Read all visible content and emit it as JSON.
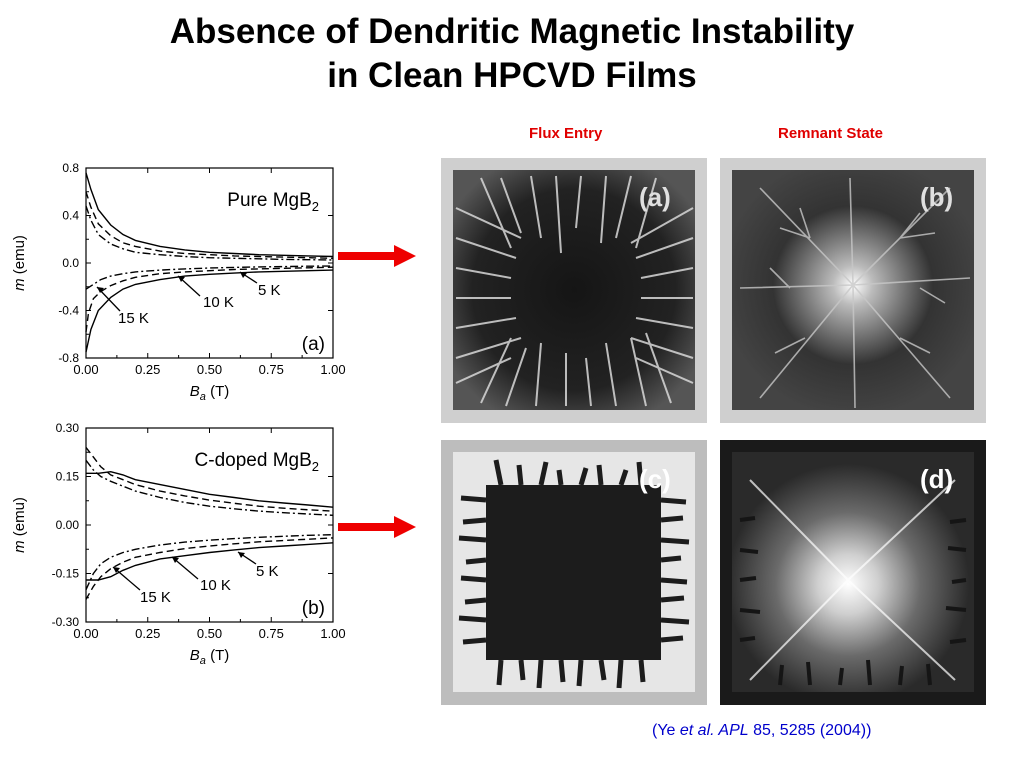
{
  "slide": {
    "title_line1": "Absence of Dendritic Magnetic Instability",
    "title_line2": "in Clean HPCVD Films",
    "column_labels": [
      "Flux Entry",
      "Remnant State"
    ],
    "citation": {
      "open": "(Ye ",
      "italic": "et al. APL",
      "rest": " 85, 5285 (2004))"
    }
  },
  "colors": {
    "label_red": "#e00000",
    "arrow_red": "#ee0000",
    "citation_blue": "#0000cc"
  },
  "image_panels": [
    {
      "label": "(a)",
      "description_icon": "dendrite-image-icon"
    },
    {
      "label": "(b)",
      "description_icon": "dendrite-image-icon"
    },
    {
      "label": "(c)",
      "description_icon": "flux-front-image-icon"
    },
    {
      "label": "(d)",
      "description_icon": "remnant-flux-image-icon"
    }
  ],
  "chart_data": [
    {
      "type": "line",
      "panel_label": "(a)",
      "title": "Pure MgB",
      "title_sub": "2",
      "xlabel_main": "B",
      "xlabel_sub": "a",
      "xlabel_unit": " (T)",
      "ylabel_italic": "m",
      "ylabel_rest": " (emu)",
      "xlim": [
        0,
        1.0
      ],
      "ylim": [
        -0.8,
        0.8
      ],
      "xticks": [
        "0.00",
        "0.25",
        "0.50",
        "0.75",
        "1.00"
      ],
      "yticks": [
        "-0.8",
        "-0.4",
        "0.0",
        "0.4",
        "0.8"
      ],
      "annotations": [
        "15 K",
        "10 K",
        "5 K"
      ],
      "series": [
        {
          "name": "15 K",
          "style": "solid",
          "upper": [
            [
              0,
              0.76
            ],
            [
              0.02,
              0.62
            ],
            [
              0.05,
              0.45
            ],
            [
              0.1,
              0.32
            ],
            [
              0.15,
              0.24
            ],
            [
              0.2,
              0.19
            ],
            [
              0.3,
              0.14
            ],
            [
              0.4,
              0.11
            ],
            [
              0.5,
              0.09
            ],
            [
              0.6,
              0.08
            ],
            [
              0.7,
              0.07
            ],
            [
              0.8,
              0.065
            ],
            [
              0.9,
              0.06
            ],
            [
              1.0,
              0.055
            ]
          ],
          "lower": [
            [
              0,
              -0.75
            ],
            [
              0.02,
              -0.56
            ],
            [
              0.05,
              -0.4
            ],
            [
              0.1,
              -0.29
            ],
            [
              0.15,
              -0.22
            ],
            [
              0.2,
              -0.18
            ],
            [
              0.3,
              -0.14
            ],
            [
              0.4,
              -0.11
            ],
            [
              0.5,
              -0.095
            ],
            [
              0.6,
              -0.085
            ],
            [
              0.7,
              -0.075
            ],
            [
              0.8,
              -0.07
            ],
            [
              0.9,
              -0.065
            ],
            [
              1.0,
              -0.06
            ]
          ]
        },
        {
          "name": "10 K",
          "style": "dash",
          "upper": [
            [
              0,
              0.6
            ],
            [
              0.02,
              0.47
            ],
            [
              0.05,
              0.33
            ],
            [
              0.1,
              0.23
            ],
            [
              0.15,
              0.17
            ],
            [
              0.2,
              0.14
            ],
            [
              0.3,
              0.1
            ],
            [
              0.4,
              0.08
            ],
            [
              0.5,
              0.07
            ],
            [
              0.6,
              0.06
            ],
            [
              0.7,
              0.055
            ],
            [
              0.8,
              0.05
            ],
            [
              0.9,
              0.045
            ],
            [
              1.0,
              0.04
            ]
          ],
          "lower": [
            [
              0,
              -0.58
            ],
            [
              0.01,
              -0.42
            ],
            [
              0.03,
              -0.3
            ],
            [
              0.06,
              -0.24
            ],
            [
              0.1,
              -0.19
            ],
            [
              0.15,
              -0.15
            ],
            [
              0.2,
              -0.12
            ],
            [
              0.3,
              -0.09
            ],
            [
              0.4,
              -0.075
            ],
            [
              0.5,
              -0.065
            ],
            [
              0.6,
              -0.055
            ],
            [
              0.7,
              -0.05
            ],
            [
              0.8,
              -0.045
            ],
            [
              0.9,
              -0.04
            ],
            [
              1.0,
              -0.035
            ]
          ]
        },
        {
          "name": "5 K",
          "style": "dashdot",
          "upper": [
            [
              0,
              0.48
            ],
            [
              0.02,
              0.36
            ],
            [
              0.05,
              0.24
            ],
            [
              0.1,
              0.16
            ],
            [
              0.15,
              0.12
            ],
            [
              0.2,
              0.09
            ],
            [
              0.3,
              0.07
            ],
            [
              0.4,
              0.055
            ],
            [
              0.5,
              0.045
            ],
            [
              0.6,
              0.04
            ],
            [
              0.7,
              0.035
            ],
            [
              0.8,
              0.03
            ],
            [
              0.9,
              0.028
            ],
            [
              1.0,
              0.025
            ]
          ],
          "lower": [
            [
              0,
              -0.22
            ],
            [
              0.03,
              -0.18
            ],
            [
              0.06,
              -0.14
            ],
            [
              0.1,
              -0.11
            ],
            [
              0.15,
              -0.09
            ],
            [
              0.2,
              -0.075
            ],
            [
              0.3,
              -0.06
            ],
            [
              0.4,
              -0.05
            ],
            [
              0.5,
              -0.042
            ],
            [
              0.6,
              -0.037
            ],
            [
              0.7,
              -0.033
            ],
            [
              0.8,
              -0.03
            ],
            [
              0.9,
              -0.027
            ],
            [
              1.0,
              -0.025
            ]
          ]
        }
      ]
    },
    {
      "type": "line",
      "panel_label": "(b)",
      "title": "C-doped MgB",
      "title_sub": "2",
      "xlabel_main": "B",
      "xlabel_sub": "a",
      "xlabel_unit": " (T)",
      "ylabel_italic": "m",
      "ylabel_rest": " (emu)",
      "xlim": [
        0,
        1.0
      ],
      "ylim": [
        -0.3,
        0.3
      ],
      "xticks": [
        "0.00",
        "0.25",
        "0.50",
        "0.75",
        "1.00"
      ],
      "yticks": [
        "-0.30",
        "-0.15",
        "0.00",
        "0.15",
        "0.30"
      ],
      "annotations": [
        "15 K",
        "10 K",
        "5 K"
      ],
      "series": [
        {
          "name": "15 K",
          "style": "solid",
          "upper": [
            [
              0,
              0.16
            ],
            [
              0.05,
              0.16
            ],
            [
              0.1,
              0.165
            ],
            [
              0.15,
              0.155
            ],
            [
              0.2,
              0.14
            ],
            [
              0.3,
              0.125
            ],
            [
              0.4,
              0.11
            ],
            [
              0.5,
              0.095
            ],
            [
              0.6,
              0.085
            ],
            [
              0.7,
              0.075
            ],
            [
              0.8,
              0.068
            ],
            [
              0.9,
              0.062
            ],
            [
              1.0,
              0.055
            ]
          ],
          "lower": [
            [
              0,
              -0.17
            ],
            [
              0.05,
              -0.17
            ],
            [
              0.1,
              -0.16
            ],
            [
              0.15,
              -0.14
            ],
            [
              0.2,
              -0.125
            ],
            [
              0.3,
              -0.105
            ],
            [
              0.4,
              -0.095
            ],
            [
              0.5,
              -0.085
            ],
            [
              0.6,
              -0.077
            ],
            [
              0.7,
              -0.07
            ],
            [
              0.8,
              -0.065
            ],
            [
              0.9,
              -0.06
            ],
            [
              1.0,
              -0.055
            ]
          ]
        },
        {
          "name": "10 K",
          "style": "dash",
          "upper": [
            [
              0,
              0.24
            ],
            [
              0.03,
              0.21
            ],
            [
              0.06,
              0.18
            ],
            [
              0.1,
              0.155
            ],
            [
              0.15,
              0.14
            ],
            [
              0.2,
              0.125
            ],
            [
              0.3,
              0.105
            ],
            [
              0.4,
              0.09
            ],
            [
              0.5,
              0.077
            ],
            [
              0.6,
              0.067
            ],
            [
              0.7,
              0.058
            ],
            [
              0.8,
              0.052
            ],
            [
              0.9,
              0.047
            ],
            [
              1.0,
              0.043
            ]
          ],
          "lower": [
            [
              0,
              -0.23
            ],
            [
              0.03,
              -0.19
            ],
            [
              0.06,
              -0.16
            ],
            [
              0.1,
              -0.135
            ],
            [
              0.15,
              -0.115
            ],
            [
              0.2,
              -0.1
            ],
            [
              0.3,
              -0.085
            ],
            [
              0.4,
              -0.073
            ],
            [
              0.5,
              -0.065
            ],
            [
              0.6,
              -0.058
            ],
            [
              0.7,
              -0.052
            ],
            [
              0.8,
              -0.048
            ],
            [
              0.9,
              -0.044
            ],
            [
              1.0,
              -0.04
            ]
          ]
        },
        {
          "name": "5 K",
          "style": "dashdot",
          "upper": [
            [
              0,
              0.2
            ],
            [
              0.03,
              0.17
            ],
            [
              0.06,
              0.15
            ],
            [
              0.1,
              0.135
            ],
            [
              0.15,
              0.12
            ],
            [
              0.2,
              0.105
            ],
            [
              0.3,
              0.085
            ],
            [
              0.4,
              0.07
            ],
            [
              0.5,
              0.058
            ],
            [
              0.6,
              0.05
            ],
            [
              0.7,
              0.043
            ],
            [
              0.8,
              0.038
            ],
            [
              0.9,
              0.034
            ],
            [
              1.0,
              0.03
            ]
          ],
          "lower": [
            [
              0,
              -0.2
            ],
            [
              0.03,
              -0.15
            ],
            [
              0.06,
              -0.12
            ],
            [
              0.1,
              -0.1
            ],
            [
              0.15,
              -0.085
            ],
            [
              0.2,
              -0.075
            ],
            [
              0.3,
              -0.062
            ],
            [
              0.4,
              -0.053
            ],
            [
              0.5,
              -0.047
            ],
            [
              0.6,
              -0.042
            ],
            [
              0.7,
              -0.038
            ],
            [
              0.8,
              -0.035
            ],
            [
              0.9,
              -0.032
            ],
            [
              1.0,
              -0.03
            ]
          ]
        }
      ]
    }
  ]
}
